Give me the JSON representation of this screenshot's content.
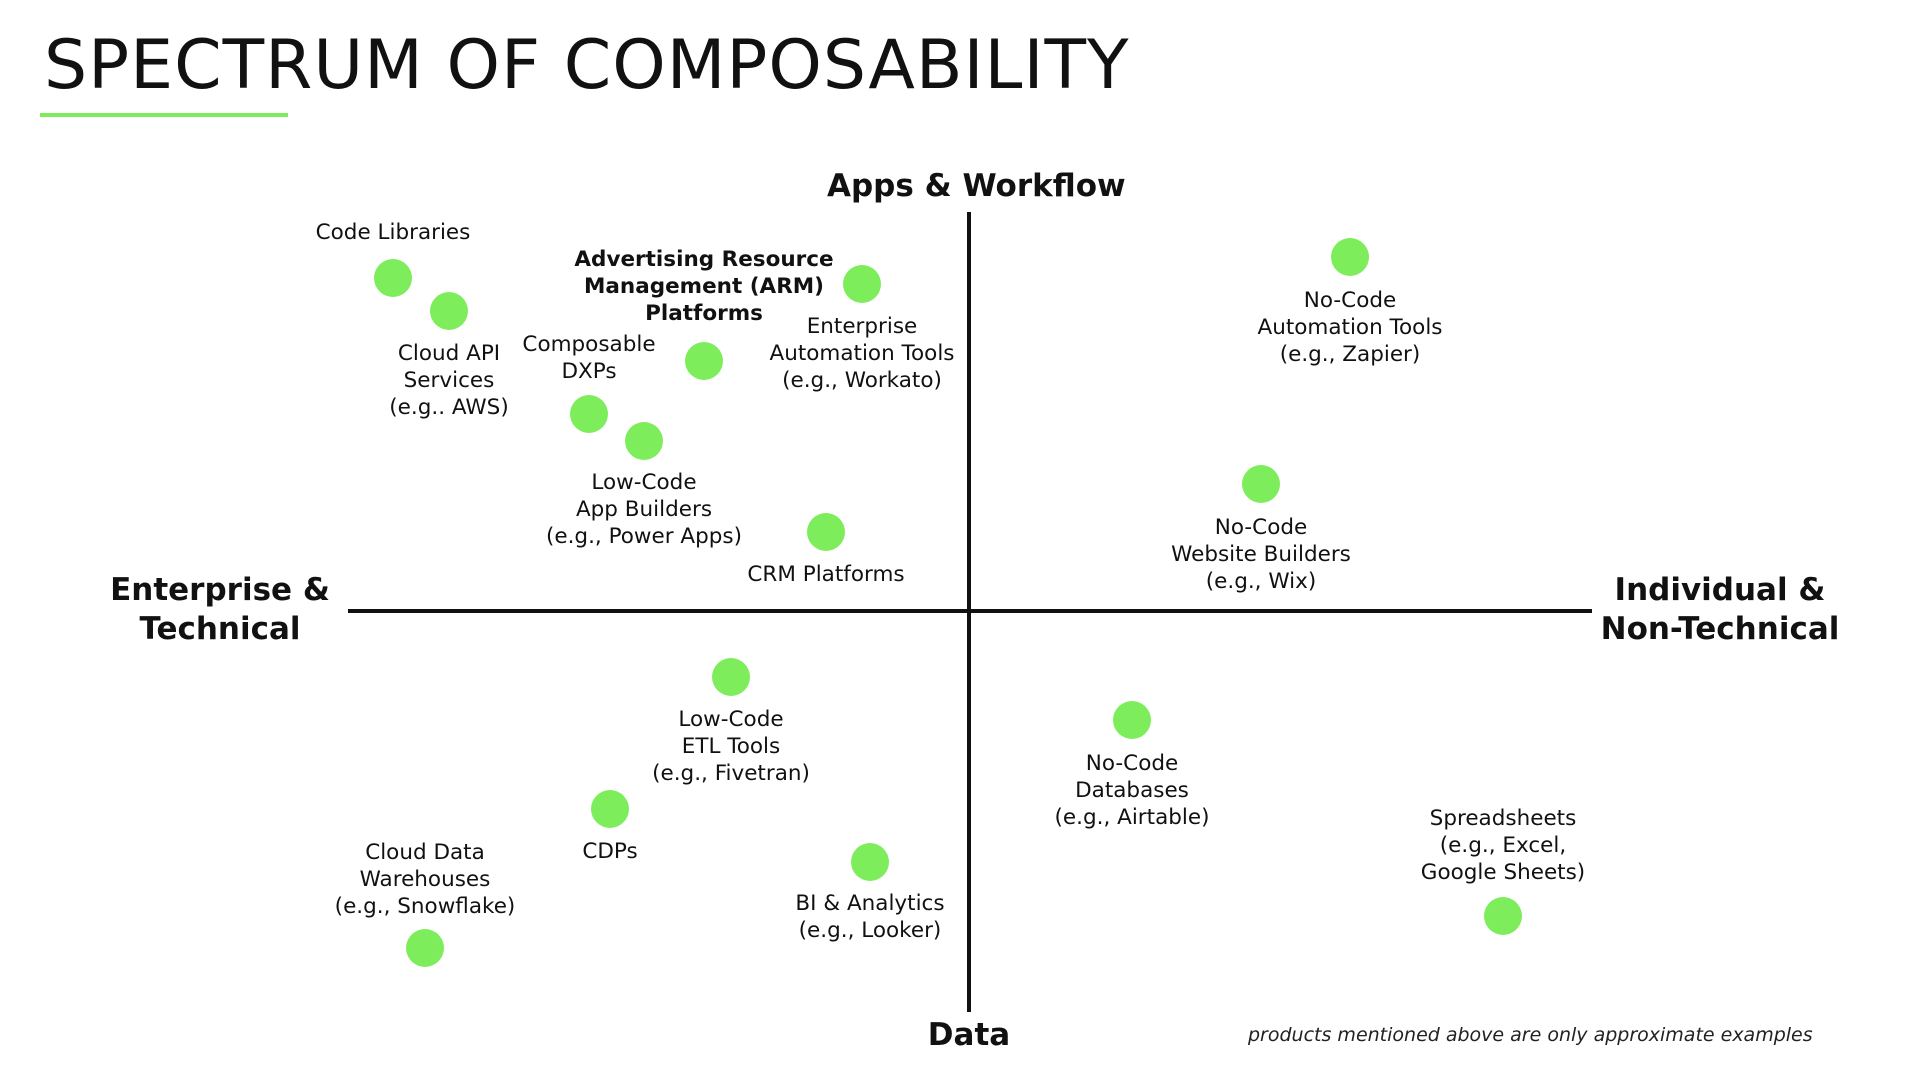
{
  "title": "SPECTRUM OF COMPOSABILITY",
  "accent_color": "#7ded5c",
  "axes": {
    "top": "Apps & Workflow",
    "bottom": "Data",
    "left": "Enterprise &\nTechnical",
    "right": "Individual &\nNon-Technical"
  },
  "items": [
    {
      "label": "Code Libraries",
      "bold": false
    },
    {
      "label": "Cloud API\nServices\n(e.g.. AWS)",
      "bold": false
    },
    {
      "label": "Advertising Resource\nManagement (ARM)\nPlatforms",
      "bold": true
    },
    {
      "label": "Enterprise\nAutomation Tools\n(e.g., Workato)",
      "bold": false
    },
    {
      "label": "Composable\nDXPs",
      "bold": false
    },
    {
      "label": "Low-Code\nApp Builders\n(e.g., Power Apps)",
      "bold": false
    },
    {
      "label": "CRM Platforms",
      "bold": false
    },
    {
      "label": "No-Code\nAutomation Tools\n(e.g., Zapier)",
      "bold": false
    },
    {
      "label": "No-Code\nWebsite Builders\n(e.g., Wix)",
      "bold": false
    },
    {
      "label": "Low-Code\nETL Tools\n(e.g., Fivetran)",
      "bold": false
    },
    {
      "label": "CDPs",
      "bold": false
    },
    {
      "label": "Cloud Data\nWarehouses\n(e.g., Snowflake)",
      "bold": false
    },
    {
      "label": "BI & Analytics\n(e.g., Looker)",
      "bold": false
    },
    {
      "label": "No-Code\nDatabases\n(e.g., Airtable)",
      "bold": false
    },
    {
      "label": "Spreadsheets\n(e.g., Excel,\nGoogle Sheets)",
      "bold": false
    }
  ],
  "footnote": "products mentioned above are only approximate examples"
}
